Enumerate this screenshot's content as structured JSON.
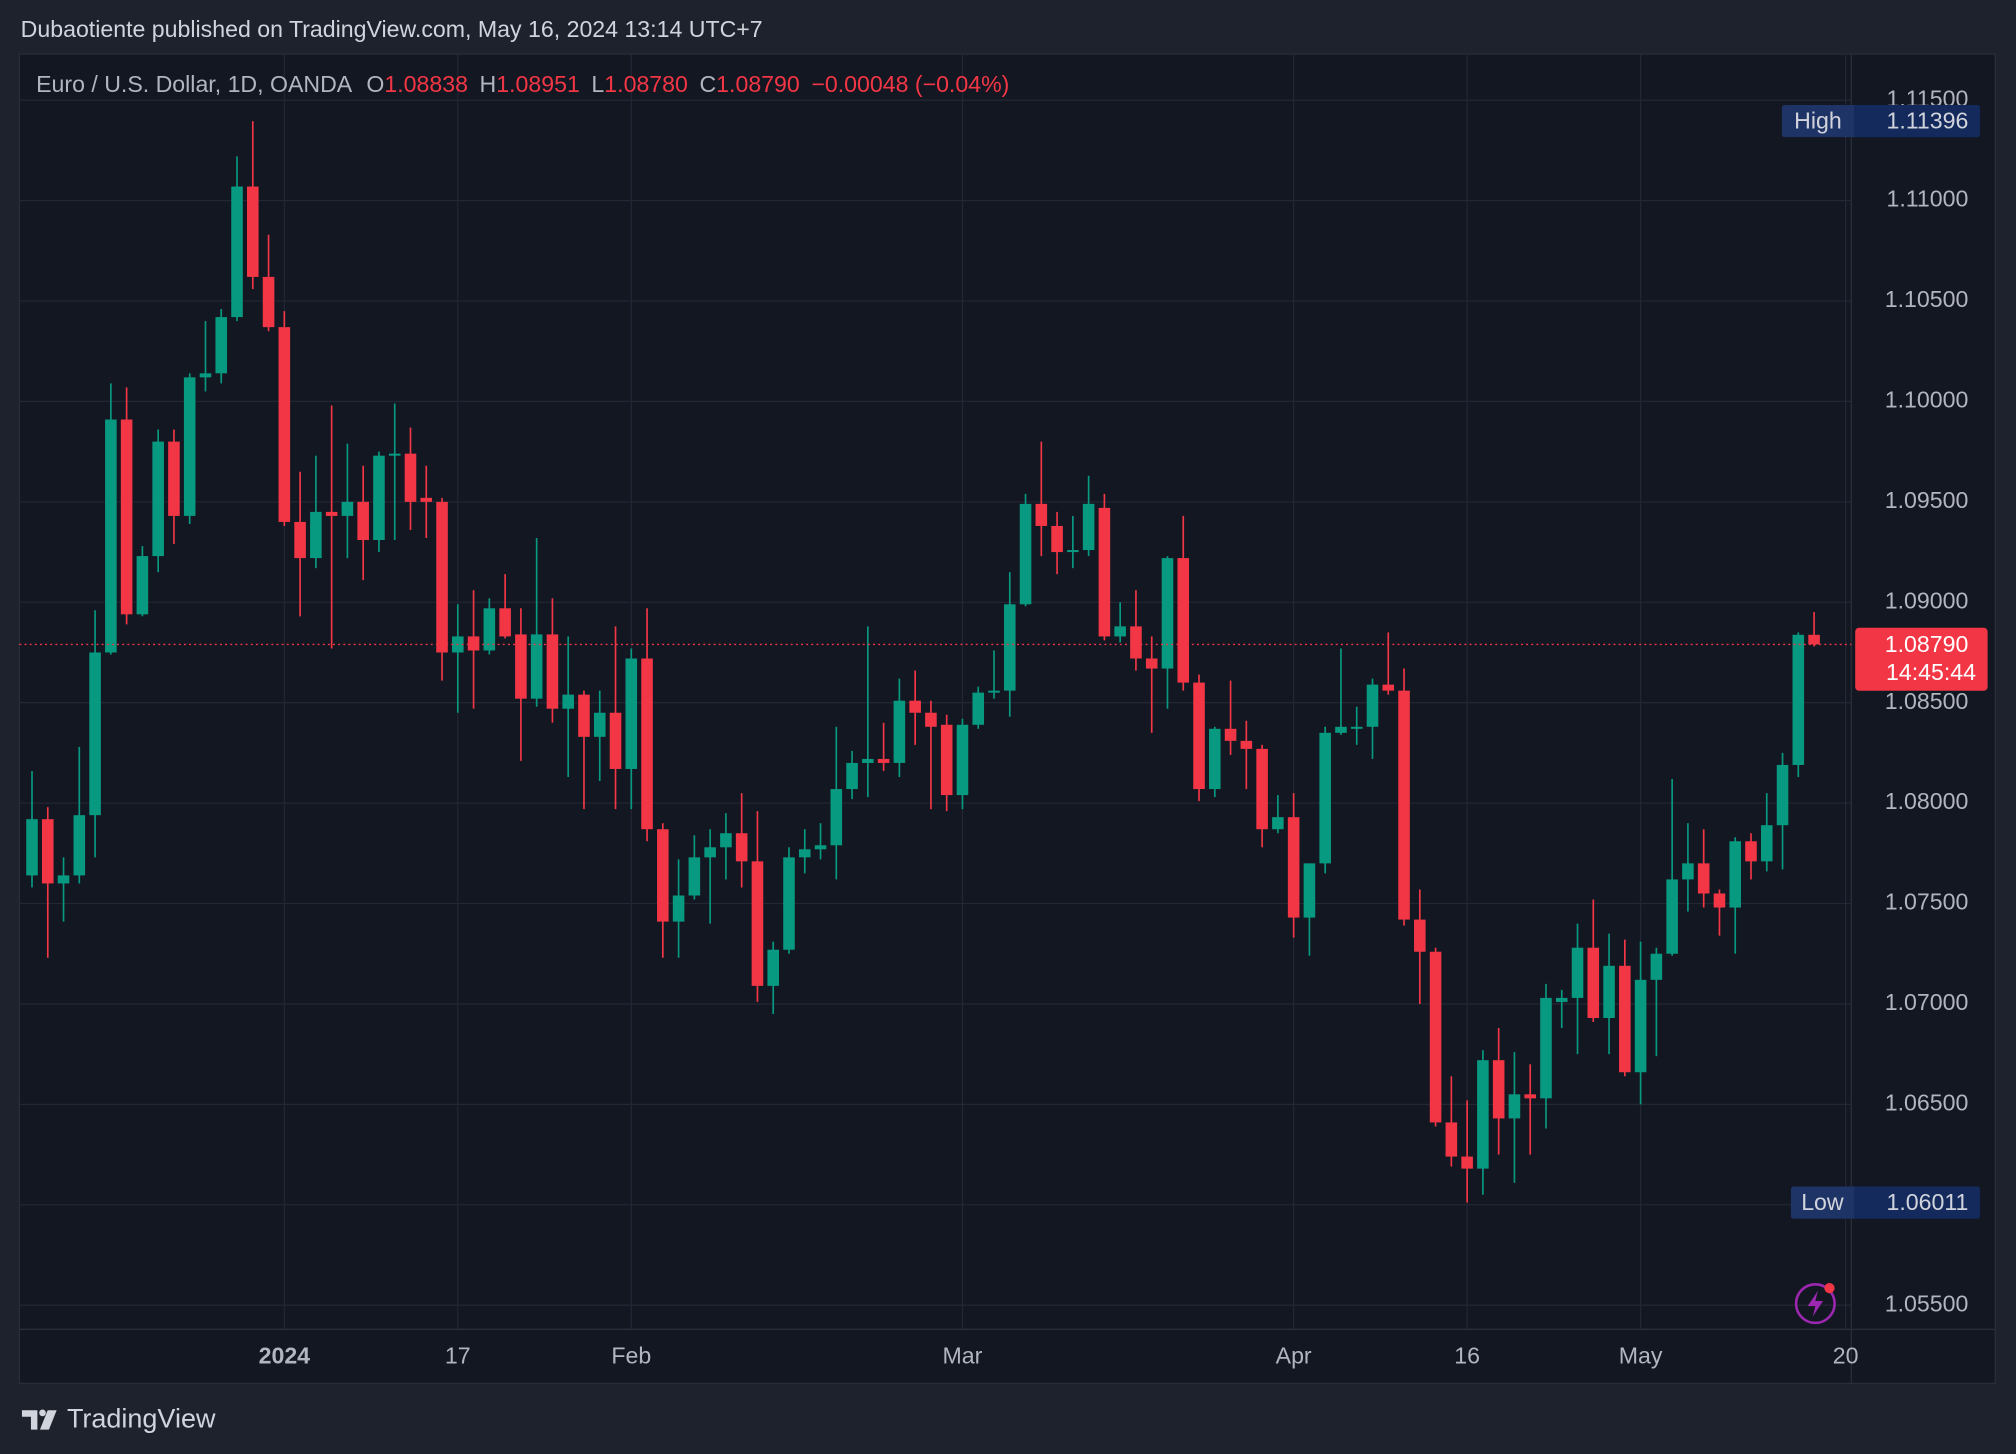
{
  "header": {
    "title": "Dubaotiente published on TradingView.com, May 16, 2024 13:14 UTC+7"
  },
  "chart_data": {
    "type": "candlestick",
    "legend": {
      "symbol": "Euro / U.S. Dollar, 1D, OANDA",
      "open_label": "O",
      "open": "1.08838",
      "high_label": "H",
      "high": "1.08951",
      "low_label": "L",
      "low": "1.08780",
      "close_label": "C",
      "close": "1.08790",
      "change": "−0.00048 (−0.04%)"
    },
    "up_color": "#089981",
    "down_color": "#f23645",
    "x": [
      0,
      1,
      2,
      3,
      4,
      5,
      6,
      7,
      8,
      9,
      10,
      11,
      12,
      13,
      14,
      15,
      16,
      17,
      18,
      19,
      20,
      21,
      22,
      23,
      24,
      25,
      26,
      27,
      28,
      29,
      30,
      31,
      32,
      33,
      34,
      35,
      36,
      37,
      38,
      39,
      40,
      41,
      42,
      43,
      44,
      45,
      46,
      47,
      48,
      49,
      50,
      51,
      52,
      53,
      54,
      55,
      56,
      57,
      58,
      59,
      60,
      61,
      62,
      63,
      64,
      65,
      66,
      67,
      68,
      69,
      70,
      71,
      72,
      73,
      74,
      75,
      76,
      77,
      78,
      79,
      80,
      81,
      82,
      83,
      84,
      85,
      86,
      87,
      88,
      89,
      90,
      91,
      92,
      93,
      94,
      95,
      96,
      97,
      98,
      99,
      100,
      101,
      102,
      103,
      104,
      105,
      106,
      107,
      108,
      109,
      110,
      111,
      112,
      113
    ],
    "open": [
      1.0764,
      1.0792,
      1.076,
      1.0764,
      1.0794,
      1.0875,
      1.0991,
      1.0894,
      1.0923,
      1.098,
      1.0943,
      1.1012,
      1.1014,
      1.1042,
      1.1107,
      1.1062,
      1.1037,
      1.094,
      1.0922,
      1.0945,
      1.0943,
      1.095,
      1.0931,
      1.0973,
      1.0974,
      1.0952,
      1.095,
      1.0875,
      1.0883,
      1.0876,
      1.0897,
      1.0884,
      1.0852,
      1.0884,
      1.0847,
      1.0854,
      1.0833,
      1.0845,
      1.0817,
      1.0872,
      1.0787,
      1.0741,
      1.0754,
      1.0773,
      1.0778,
      1.0785,
      1.0771,
      1.0709,
      1.0727,
      1.0773,
      1.0777,
      1.0779,
      1.0807,
      1.082,
      1.0822,
      1.082,
      1.0851,
      1.0845,
      1.0839,
      1.0804,
      1.0839,
      1.0855,
      1.0856,
      1.0899,
      1.0949,
      1.0938,
      1.0925,
      1.0926,
      1.0947,
      1.0883,
      1.0888,
      1.0872,
      1.0867,
      1.0922,
      1.086,
      1.0807,
      1.0837,
      1.0831,
      1.0827,
      1.0787,
      1.0793,
      1.0743,
      1.077,
      1.0835,
      1.0837,
      1.0838,
      1.0859,
      1.0856,
      1.0742,
      1.0726,
      1.0641,
      1.0624,
      1.0618,
      1.0672,
      1.0643,
      1.0655,
      1.0653,
      1.0701,
      1.0703,
      1.0728,
      1.0693,
      1.0719,
      1.0666,
      1.0712,
      1.0725,
      1.0762,
      1.077,
      1.0755,
      1.0748,
      1.0781,
      1.0771,
      1.0789,
      1.0819,
      1.08838
    ],
    "high": [
      1.0816,
      1.0798,
      1.0773,
      1.0828,
      1.0896,
      1.1009,
      1.1007,
      1.0928,
      1.0986,
      1.0986,
      1.1014,
      1.104,
      1.1046,
      1.1122,
      1.11396,
      1.1083,
      1.1045,
      1.0965,
      1.0973,
      1.0998,
      1.0979,
      1.0968,
      1.0975,
      1.0999,
      1.0987,
      1.0968,
      1.0952,
      1.0899,
      1.0906,
      1.0902,
      1.0914,
      1.0897,
      1.0932,
      1.0902,
      1.0883,
      1.0856,
      1.0856,
      1.0888,
      1.0877,
      1.0897,
      1.079,
      1.0772,
      1.0784,
      1.0787,
      1.0795,
      1.0805,
      1.0796,
      1.0731,
      1.0778,
      1.0787,
      1.079,
      1.0838,
      1.0826,
      1.0888,
      1.084,
      1.0862,
      1.0866,
      1.0851,
      1.0844,
      1.0842,
      1.0858,
      1.0876,
      1.0915,
      1.0954,
      1.098,
      1.0945,
      1.0943,
      1.0963,
      1.0954,
      1.09,
      1.0906,
      1.0883,
      1.0923,
      1.0943,
      1.0864,
      1.0838,
      1.0861,
      1.0841,
      1.0829,
      1.0804,
      1.0805,
      1.077,
      1.0838,
      1.0877,
      1.0848,
      1.0862,
      1.0885,
      1.0867,
      1.0757,
      1.0728,
      1.0664,
      1.0652,
      1.0677,
      1.0688,
      1.0676,
      1.067,
      1.071,
      1.0707,
      1.074,
      1.0752,
      1.0735,
      1.0732,
      1.0731,
      1.0728,
      1.0812,
      1.079,
      1.0787,
      1.0757,
      1.0783,
      1.0785,
      1.0805,
      1.0825,
      1.0885,
      1.08951
    ],
    "low": [
      1.0758,
      1.0723,
      1.0741,
      1.076,
      1.0773,
      1.0874,
      1.0889,
      1.0893,
      1.0915,
      1.0929,
      1.0939,
      1.1005,
      1.1009,
      1.104,
      1.1056,
      1.1035,
      1.0938,
      1.0893,
      1.0917,
      1.0877,
      1.0922,
      1.0911,
      1.0925,
      1.0931,
      1.0936,
      1.0932,
      1.0861,
      1.0845,
      1.0847,
      1.0874,
      1.0882,
      1.0821,
      1.0848,
      1.084,
      1.0813,
      1.0797,
      1.0811,
      1.0797,
      1.0797,
      1.0781,
      1.0723,
      1.0723,
      1.0752,
      1.074,
      1.0762,
      1.0758,
      1.0701,
      1.0695,
      1.0725,
      1.0765,
      1.0772,
      1.0762,
      1.0802,
      1.0803,
      1.0816,
      1.0813,
      1.0829,
      1.0797,
      1.0796,
      1.0797,
      1.0837,
      1.0852,
      1.0843,
      1.0898,
      1.0923,
      1.0914,
      1.0917,
      1.0923,
      1.0881,
      1.088,
      1.0866,
      1.0835,
      1.0847,
      1.0856,
      1.0801,
      1.0803,
      1.0824,
      1.0807,
      1.0778,
      1.0785,
      1.0733,
      1.0724,
      1.0765,
      1.0834,
      1.0829,
      1.0822,
      1.0854,
      1.0739,
      1.07,
      1.0639,
      1.0619,
      1.06011,
      1.0605,
      1.0625,
      1.0611,
      1.0625,
      1.0638,
      1.0688,
      1.0675,
      1.0691,
      1.0675,
      1.0664,
      1.065,
      1.0674,
      1.0724,
      1.0746,
      1.0748,
      1.0734,
      1.0725,
      1.0762,
      1.0766,
      1.0767,
      1.0813,
      1.0878
    ],
    "close": [
      1.0792,
      1.076,
      1.0764,
      1.0794,
      1.0875,
      1.0991,
      1.0894,
      1.0923,
      1.098,
      1.0943,
      1.1012,
      1.1014,
      1.1042,
      1.1107,
      1.1062,
      1.1037,
      1.094,
      1.0922,
      1.0945,
      1.0943,
      1.095,
      1.0931,
      1.0973,
      1.0974,
      1.095,
      1.095,
      1.0875,
      1.0883,
      1.0876,
      1.0897,
      1.0883,
      1.0852,
      1.0884,
      1.0847,
      1.0854,
      1.0833,
      1.0845,
      1.0817,
      1.0872,
      1.0787,
      1.0741,
      1.0754,
      1.0773,
      1.0778,
      1.0785,
      1.0771,
      1.0709,
      1.0727,
      1.0773,
      1.0777,
      1.0779,
      1.0807,
      1.082,
      1.0822,
      1.082,
      1.0851,
      1.0845,
      1.0838,
      1.0804,
      1.0839,
      1.0855,
      1.0856,
      1.0899,
      1.0949,
      1.0938,
      1.0925,
      1.0926,
      1.0949,
      1.0883,
      1.0888,
      1.0872,
      1.0867,
      1.0922,
      1.086,
      1.0807,
      1.0837,
      1.0831,
      1.0827,
      1.0787,
      1.0793,
      1.0743,
      1.077,
      1.0835,
      1.0838,
      1.0838,
      1.0859,
      1.0856,
      1.0742,
      1.0726,
      1.0641,
      1.0624,
      1.0618,
      1.0672,
      1.0643,
      1.0655,
      1.0653,
      1.0703,
      1.0703,
      1.0728,
      1.0693,
      1.0719,
      1.0666,
      1.0712,
      1.0725,
      1.0762,
      1.077,
      1.0755,
      1.0748,
      1.0781,
      1.0771,
      1.0789,
      1.0819,
      1.08838,
      1.0879
    ],
    "xlim": [
      -0.8,
      115.2
    ],
    "xticks": [
      {
        "value": 16,
        "label": "2024"
      },
      {
        "value": 27,
        "label": "17"
      },
      {
        "value": 38,
        "label": "Feb"
      },
      {
        "value": 59,
        "label": "Mar"
      },
      {
        "value": 80,
        "label": "Apr"
      },
      {
        "value": 91,
        "label": "16"
      },
      {
        "value": 102,
        "label": "May"
      },
      {
        "value": 115,
        "label": "20"
      }
    ],
    "ylim": [
      1.0538,
      1.1173
    ],
    "yticks": [
      {
        "value": 1.055,
        "label": "1.05500"
      },
      {
        "value": 1.06,
        "label": "1.06000"
      },
      {
        "value": 1.065,
        "label": "1.06500"
      },
      {
        "value": 1.07,
        "label": "1.07000"
      },
      {
        "value": 1.075,
        "label": "1.07500"
      },
      {
        "value": 1.08,
        "label": "1.08000"
      },
      {
        "value": 1.085,
        "label": "1.08500"
      },
      {
        "value": 1.09,
        "label": "1.09000"
      },
      {
        "value": 1.095,
        "label": "1.09500"
      },
      {
        "value": 1.1,
        "label": "1.10000"
      },
      {
        "value": 1.105,
        "label": "1.10500"
      },
      {
        "value": 1.11,
        "label": "1.11000"
      },
      {
        "value": 1.115,
        "label": "1.11500"
      }
    ],
    "grid": true,
    "high_marker": {
      "label": "High",
      "index": 14
    },
    "low_marker": {
      "label": "Low",
      "index": 91
    },
    "price_line": {
      "label": "1.08790",
      "countdown": "14:45:44"
    }
  },
  "footer": {
    "brand": "TradingView"
  }
}
